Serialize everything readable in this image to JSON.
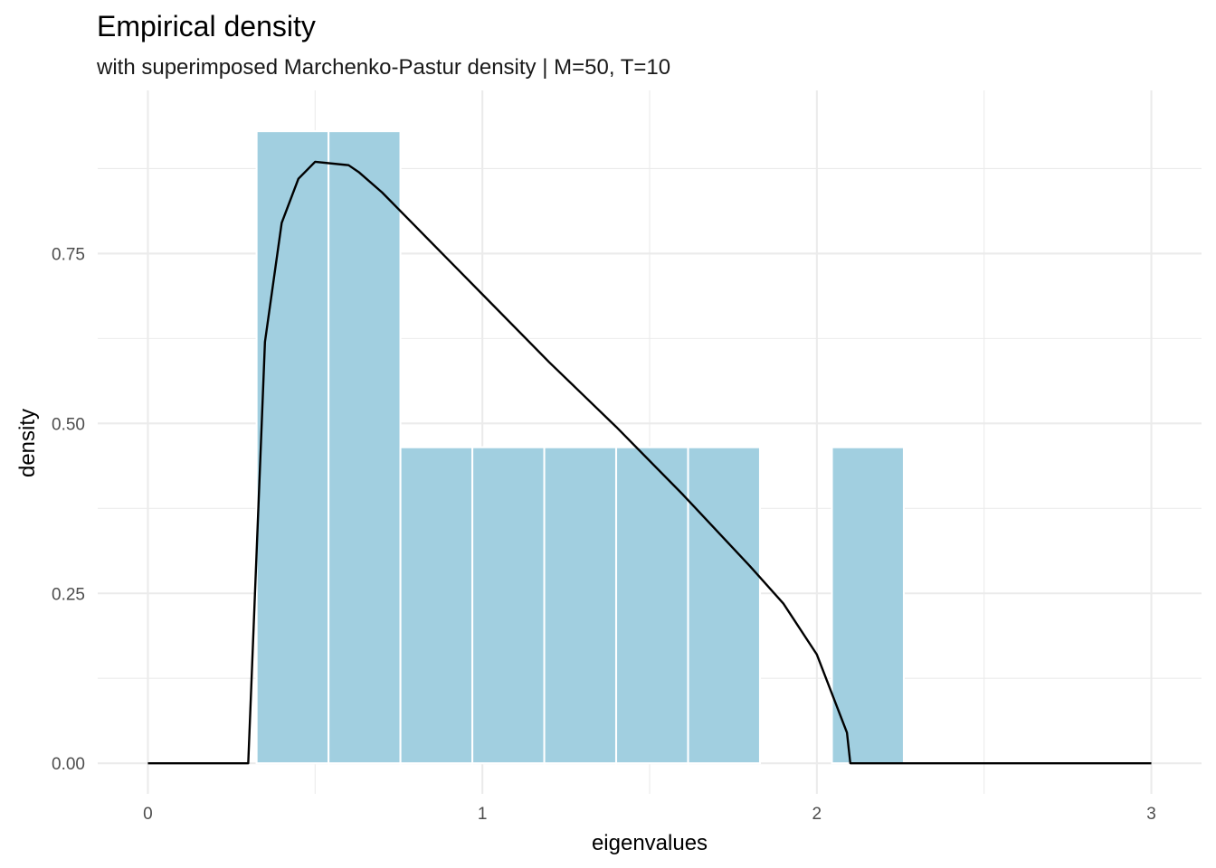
{
  "chart_data": {
    "type": "bar",
    "title": "Empirical density",
    "subtitle": "with superimposed Marchenko-Pastur density | M=50, T=10",
    "xlabel": "eigenvalues",
    "ylabel": "density",
    "xlim": [
      -0.15,
      3.15
    ],
    "ylim": [
      -0.045,
      0.99
    ],
    "x_breaks": [
      0,
      1,
      2,
      3
    ],
    "x_tick_labels": [
      "0",
      "1",
      "2",
      "3"
    ],
    "y_breaks": [
      0,
      0.25,
      0.5,
      0.75
    ],
    "y_tick_labels": [
      "0.00",
      "0.25",
      "0.50",
      "0.75"
    ],
    "x_minor_breaks": [
      0.5,
      1.5,
      2.5
    ],
    "y_minor_breaks": [
      0.125,
      0.375,
      0.625,
      0.875
    ],
    "grid": true,
    "colors": {
      "bar_fill": "#a1cfe0",
      "bar_outline": "#ffffff",
      "line": "#000000",
      "grid": "#ebebeb"
    },
    "histogram": {
      "bins": [
        {
          "xmin": 0.325,
          "xmax": 0.54,
          "density": 0.93
        },
        {
          "xmin": 0.54,
          "xmax": 0.755,
          "density": 0.93
        },
        {
          "xmin": 0.755,
          "xmax": 0.97,
          "density": 0.465
        },
        {
          "xmin": 0.97,
          "xmax": 1.185,
          "density": 0.465
        },
        {
          "xmin": 1.185,
          "xmax": 1.4,
          "density": 0.465
        },
        {
          "xmin": 1.4,
          "xmax": 1.615,
          "density": 0.465
        },
        {
          "xmin": 1.615,
          "xmax": 1.83,
          "density": 0.465
        },
        {
          "xmin": 1.83,
          "xmax": 2.045,
          "density": 0
        },
        {
          "xmin": 2.045,
          "xmax": 2.26,
          "density": 0.465
        }
      ]
    },
    "series": [
      {
        "type": "line",
        "x": [
          0,
          0.3,
          0.35,
          0.4,
          0.45,
          0.5,
          0.6,
          0.63,
          0.7,
          0.8,
          0.9,
          1.0,
          1.2,
          1.4,
          1.6,
          1.8,
          1.9,
          2.0,
          2.09,
          2.1,
          3.0
        ],
        "y": [
          0,
          0,
          0.62,
          0.795,
          0.86,
          0.885,
          0.88,
          0.87,
          0.84,
          0.79,
          0.74,
          0.69,
          0.59,
          0.495,
          0.395,
          0.29,
          0.235,
          0.16,
          0.045,
          0,
          0
        ]
      }
    ]
  }
}
